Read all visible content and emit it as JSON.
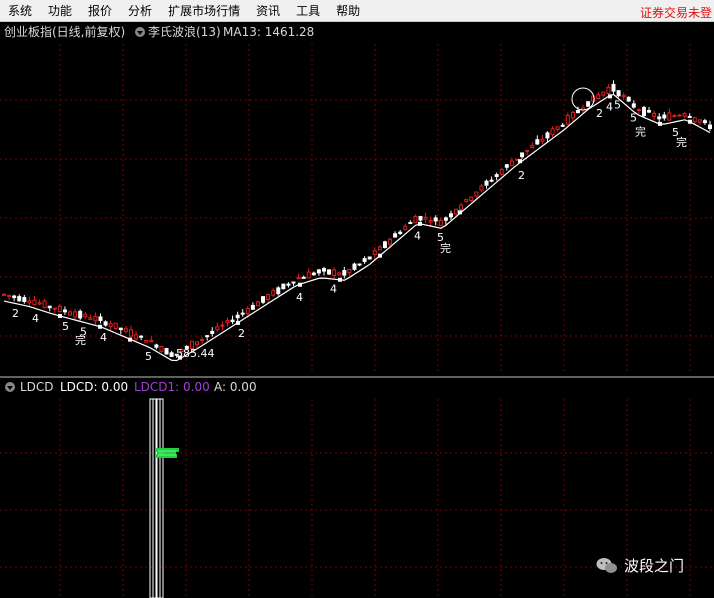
{
  "menu": {
    "items": [
      "系统",
      "功能",
      "报价",
      "分析",
      "扩展市场行情",
      "资讯",
      "工具",
      "帮助"
    ],
    "right_status": "证券交易未登"
  },
  "main_panel": {
    "index_name": "创业板指(日线,前复权)",
    "indicator_name": "李氏波浪(13)",
    "ma_label": "MA13: 1461.28",
    "low_label": "585.44",
    "wave_labels": [
      "2",
      "4",
      "5",
      "完"
    ]
  },
  "sub_panel": {
    "indicator": "LDCD",
    "ldcd_label": "LDCD: 0.00",
    "ldcd1_label": "LDCD1: 0.00",
    "a_label": "A: 0.00"
  },
  "watermark": {
    "text": "波段之门",
    "icon": "wechat-icon"
  },
  "colors": {
    "background": "#000000",
    "grid": "#7a0000",
    "candle_up": "#e02020",
    "candle_down": "#ffffff",
    "ma_line": "#ffffff",
    "ldcd1": "#a040d0",
    "signal_green": "#20d040",
    "menu_alert": "#e01010"
  },
  "chart_data": {
    "type": "candlestick",
    "title": "创业板指(日线,前复权)",
    "indicator": "李氏波浪(13)",
    "ma13_latest": 1461.28,
    "low_marked": 585.44,
    "trend_closes": [
      820,
      800,
      770,
      745,
      720,
      680,
      640,
      585.44,
      640,
      700,
      760,
      820,
      880,
      910,
      900,
      960,
      1040,
      1120,
      1100,
      1180,
      1260,
      1340,
      1410,
      1480,
      1560,
      1620,
      1540,
      1500,
      1520,
      1470
    ],
    "sub_indicator": {
      "name": "LDCD",
      "LDCD": 0.0,
      "LDCD1": 0.0,
      "A": 0.0
    }
  }
}
